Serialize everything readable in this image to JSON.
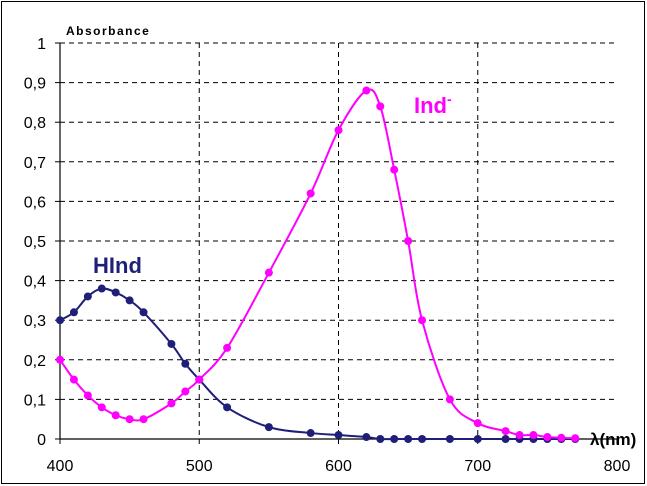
{
  "chart_data": {
    "type": "line",
    "title": "",
    "ylabel": "Absorbance",
    "xlabel": "λ(nm)",
    "xlim": [
      400,
      800
    ],
    "ylim": [
      0,
      1
    ],
    "x_ticks": [
      "400",
      "500",
      "600",
      "700",
      "800"
    ],
    "y_ticks": [
      "0",
      "0,1",
      "0,2",
      "0,3",
      "0,4",
      "0,5",
      "0,6",
      "0,7",
      "0,8",
      "0,9",
      "1"
    ],
    "grid": true,
    "series": [
      {
        "name": "HInd",
        "color": "#1f1f7a",
        "points": [
          [
            400,
            0.3
          ],
          [
            410,
            0.32
          ],
          [
            420,
            0.36
          ],
          [
            430,
            0.38
          ],
          [
            440,
            0.37
          ],
          [
            450,
            0.35
          ],
          [
            460,
            0.32
          ],
          [
            480,
            0.24
          ],
          [
            490,
            0.19
          ],
          [
            500,
            0.15
          ],
          [
            520,
            0.08
          ],
          [
            550,
            0.03
          ],
          [
            580,
            0.015
          ],
          [
            600,
            0.01
          ],
          [
            620,
            0.005
          ],
          [
            630,
            0.0
          ],
          [
            640,
            0.0
          ],
          [
            650,
            0.0
          ],
          [
            660,
            0.0
          ],
          [
            680,
            0.0
          ],
          [
            700,
            0.0
          ],
          [
            720,
            0.0
          ],
          [
            730,
            0.0
          ],
          [
            740,
            0.0
          ],
          [
            750,
            0.0
          ],
          [
            760,
            0.0
          ],
          [
            770,
            0.0
          ]
        ]
      },
      {
        "name": "Ind-",
        "label_main": "Ind",
        "label_sup": "-",
        "color": "#ff00ff",
        "points": [
          [
            400,
            0.2
          ],
          [
            410,
            0.15
          ],
          [
            420,
            0.11
          ],
          [
            430,
            0.08
          ],
          [
            440,
            0.06
          ],
          [
            450,
            0.05
          ],
          [
            460,
            0.05
          ],
          [
            480,
            0.09
          ],
          [
            490,
            0.12
          ],
          [
            500,
            0.15
          ],
          [
            520,
            0.23
          ],
          [
            550,
            0.42
          ],
          [
            580,
            0.62
          ],
          [
            600,
            0.78
          ],
          [
            620,
            0.88
          ],
          [
            630,
            0.84
          ],
          [
            640,
            0.68
          ],
          [
            650,
            0.5
          ],
          [
            660,
            0.3
          ],
          [
            680,
            0.1
          ],
          [
            700,
            0.04
          ],
          [
            720,
            0.02
          ],
          [
            730,
            0.01
          ],
          [
            740,
            0.01
          ],
          [
            750,
            0.005
          ],
          [
            760,
            0.003
          ],
          [
            770,
            0.002
          ]
        ]
      }
    ]
  }
}
